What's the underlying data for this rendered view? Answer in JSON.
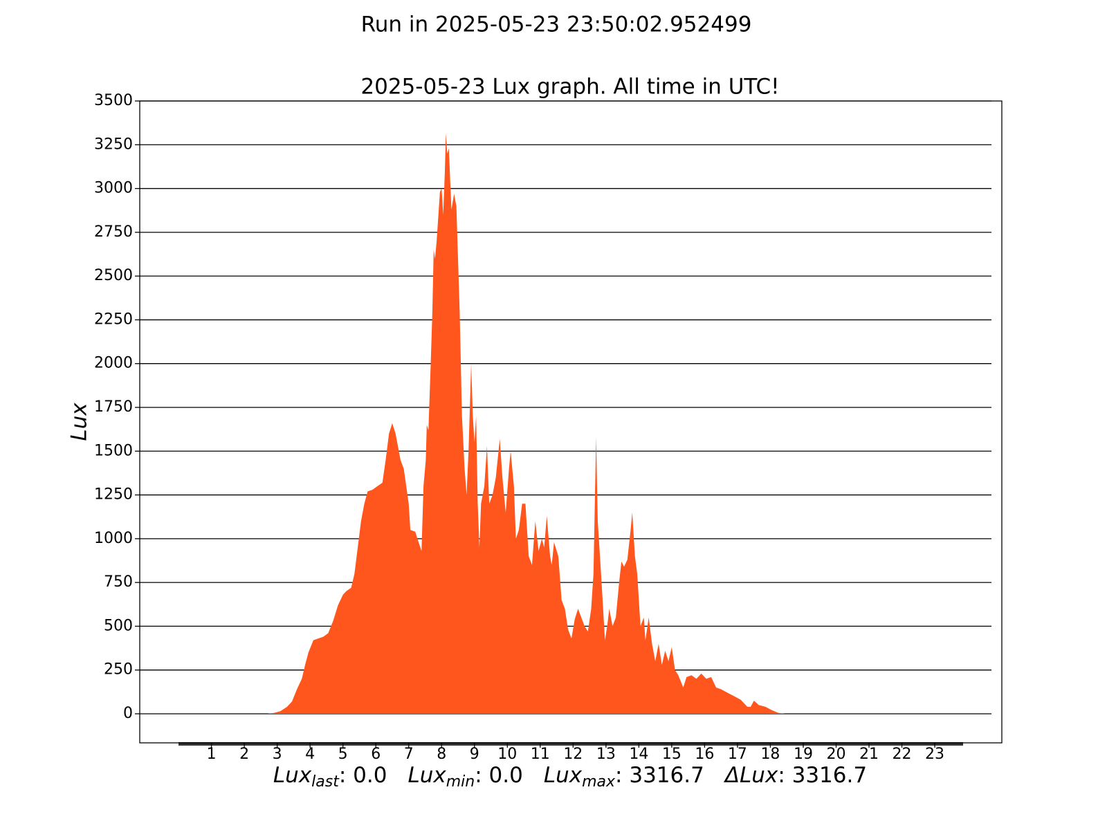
{
  "chart_data": {
    "type": "area",
    "title": "Run in 2025-05-23 23:50:02.952499",
    "subtitle": "2025-05-23 Lux graph. All time in UTC!",
    "ylabel": "Lux",
    "xlabel_parts": [
      {
        "symbol": "Lux",
        "subscript": "last",
        "text": ": 0.0"
      },
      {
        "symbol": "Lux",
        "subscript": "min",
        "text": ": 0.0"
      },
      {
        "symbol": "Lux",
        "subscript": "max",
        "text": ": 3316.7"
      },
      {
        "symbol": "ΔLux",
        "text": ": 3316.7"
      }
    ],
    "color": "#fe561c",
    "grid": true,
    "xlim": [
      -1.18,
      25.04
    ],
    "ylim": [
      -166,
      3500
    ],
    "xticks": [
      1,
      2,
      3,
      4,
      5,
      6,
      7,
      8,
      9,
      10,
      11,
      12,
      13,
      14,
      15,
      16,
      17,
      18,
      19,
      20,
      21,
      22,
      23
    ],
    "yticks": [
      0,
      250,
      500,
      750,
      1000,
      1250,
      1500,
      1750,
      2000,
      2250,
      2500,
      2750,
      3000,
      3250,
      3500
    ],
    "x": [
      0,
      2.7,
      2.9,
      3.1,
      3.3,
      3.45,
      3.6,
      3.75,
      3.85,
      3.95,
      4.1,
      4.25,
      4.4,
      4.55,
      4.7,
      4.85,
      5.0,
      5.1,
      5.25,
      5.35,
      5.45,
      5.55,
      5.65,
      5.75,
      5.9,
      6.05,
      6.2,
      6.3,
      6.4,
      6.5,
      6.6,
      6.7,
      6.75,
      6.85,
      7.0,
      7.05,
      7.2,
      7.3,
      7.39,
      7.45,
      7.52,
      7.55,
      7.6,
      7.67,
      7.72,
      7.76,
      7.8,
      7.85,
      7.95,
      8.0,
      8.05,
      8.1,
      8.13,
      8.17,
      8.22,
      8.3,
      8.38,
      8.45,
      8.55,
      8.62,
      8.7,
      8.76,
      8.82,
      8.9,
      8.95,
      9.0,
      9.05,
      9.1,
      9.15,
      9.2,
      9.3,
      9.38,
      9.45,
      9.55,
      9.65,
      9.77,
      9.85,
      9.95,
      10.05,
      10.1,
      10.2,
      10.26,
      10.35,
      10.45,
      10.55,
      10.65,
      10.75,
      10.85,
      10.95,
      11.05,
      11.12,
      11.2,
      11.3,
      11.35,
      11.42,
      11.55,
      11.65,
      11.75,
      11.85,
      11.95,
      12.05,
      12.15,
      12.25,
      12.35,
      12.45,
      12.55,
      12.62,
      12.7,
      12.75,
      12.85,
      12.97,
      13.05,
      13.1,
      13.2,
      13.3,
      13.4,
      13.47,
      13.55,
      13.65,
      13.75,
      13.8,
      13.88,
      13.95,
      14.05,
      14.15,
      14.2,
      14.3,
      14.4,
      14.5,
      14.6,
      14.7,
      14.8,
      14.9,
      15.0,
      15.1,
      15.2,
      15.35,
      15.45,
      15.6,
      15.75,
      15.9,
      16.05,
      16.2,
      16.35,
      16.5,
      16.7,
      16.9,
      17.1,
      17.3,
      17.4,
      17.5,
      17.65,
      17.85,
      18.05,
      18.25,
      18.45,
      23.87
    ],
    "values": [
      0,
      0,
      5,
      15,
      40,
      70,
      140,
      200,
      280,
      350,
      420,
      430,
      440,
      460,
      530,
      620,
      680,
      700,
      720,
      800,
      950,
      1100,
      1200,
      1270,
      1280,
      1300,
      1320,
      1450,
      1600,
      1660,
      1600,
      1500,
      1450,
      1400,
      1200,
      1050,
      1040,
      980,
      930,
      1300,
      1450,
      1650,
      1620,
      2000,
      2300,
      2650,
      2600,
      2700,
      2980,
      3000,
      2850,
      3100,
      3316.7,
      3200,
      3230,
      2880,
      2970,
      2900,
      2300,
      1700,
      1400,
      1250,
      1500,
      2000,
      1700,
      1550,
      1700,
      1200,
      950,
      1200,
      1300,
      1530,
      1200,
      1250,
      1350,
      1570,
      1350,
      1150,
      1400,
      1500,
      1300,
      1000,
      1050,
      1200,
      1200,
      900,
      850,
      1100,
      930,
      1000,
      950,
      1130,
      900,
      850,
      980,
      900,
      650,
      600,
      480,
      430,
      540,
      600,
      550,
      500,
      470,
      600,
      800,
      1580,
      1100,
      800,
      420,
      520,
      600,
      500,
      550,
      750,
      870,
      840,
      880,
      1050,
      1150,
      900,
      800,
      500,
      550,
      420,
      550,
      400,
      300,
      400,
      280,
      360,
      300,
      380,
      250,
      220,
      150,
      210,
      220,
      200,
      230,
      200,
      210,
      150,
      140,
      120,
      100,
      80,
      40,
      40,
      75,
      50,
      40,
      20,
      5,
      0,
      0
    ]
  }
}
